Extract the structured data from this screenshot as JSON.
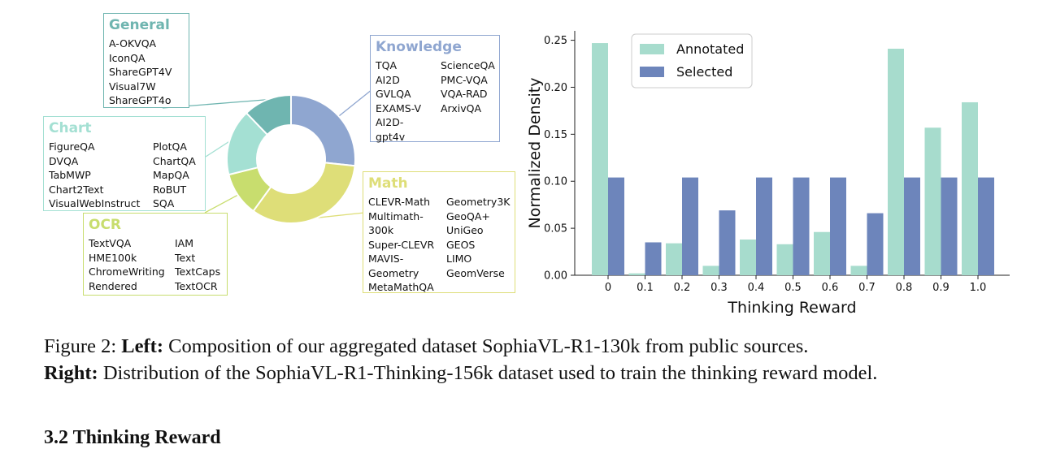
{
  "colors": {
    "general": "#6fb5b0",
    "knowledge": "#8fa6d0",
    "math": "#dede78",
    "ocr": "#c8dd6e",
    "chart": "#a4e0d3",
    "annotated": "#a7dccd",
    "selected": "#6d85bb"
  },
  "donut": {
    "slices": [
      {
        "name": "Knowledge",
        "value": 24
      },
      {
        "name": "Math",
        "value": 30
      },
      {
        "name": "OCR",
        "value": 10
      },
      {
        "name": "Chart",
        "value": 15
      },
      {
        "name": "General",
        "value": 11
      }
    ]
  },
  "boxes": {
    "general": {
      "title": "General",
      "items": [
        "A-OKVQA",
        "IconQA",
        "ShareGPT4V",
        "Visual7W",
        "ShareGPT4o"
      ]
    },
    "knowledge": {
      "title": "Knowledge",
      "col1": [
        "TQA",
        "AI2D",
        "GVLQA",
        "EXAMS-V",
        "AI2D-\ngpt4v"
      ],
      "col2": [
        "ScienceQA",
        "PMC-VQA",
        "VQA-RAD",
        "ArxivQA"
      ]
    },
    "chart": {
      "title": "Chart",
      "col1": [
        "FigureQA",
        "DVQA",
        "TabMWP",
        "Chart2Text",
        "VisualWebInstruct"
      ],
      "col2": [
        "PlotQA",
        "ChartQA",
        "MapQA",
        "RoBUT",
        "SQA"
      ]
    },
    "math": {
      "title": "Math",
      "col1": [
        "CLEVR-Math",
        "Multimath-\n300k",
        "Super-CLEVR",
        "MAVIS-\nGeometry",
        "MetaMathQA"
      ],
      "col2": [
        "Geometry3K",
        "GeoQA+",
        "UniGeo",
        "GEOS",
        "LIMO",
        "GeomVerse"
      ]
    },
    "ocr": {
      "title": "OCR",
      "col1": [
        "TextVQA",
        "HME100k",
        "ChromeWriting",
        "Rendered"
      ],
      "col2": [
        "IAM",
        "Text",
        "TextCaps",
        "TextOCR"
      ]
    }
  },
  "chart_data": {
    "type": "bar",
    "xlabel": "Thinking Reward",
    "ylabel": "Normalized Density",
    "ylim": [
      0,
      0.26
    ],
    "yticks": [
      "0.00",
      "0.05",
      "0.10",
      "0.15",
      "0.20",
      "0.25"
    ],
    "categories": [
      "0",
      "0.1",
      "0.2",
      "0.3",
      "0.4",
      "0.5",
      "0.6",
      "0.7",
      "0.8",
      "0.9",
      "1.0"
    ],
    "series": [
      {
        "name": "Annotated",
        "values": [
          0.247,
          0.002,
          0.034,
          0.01,
          0.038,
          0.033,
          0.046,
          0.01,
          0.241,
          0.157,
          0.184
        ]
      },
      {
        "name": "Selected",
        "values": [
          0.104,
          0.035,
          0.104,
          0.069,
          0.104,
          0.104,
          0.104,
          0.066,
          0.104,
          0.104,
          0.104
        ]
      }
    ],
    "legend_position": "top-left"
  },
  "caption": {
    "figure_label": "Figure 2: ",
    "left_label": "Left:",
    "left_text": " Composition of our aggregated dataset SophiaVL-R1-130k from public sources.",
    "right_label": "Right:",
    "right_text": " Distribution of the SophiaVL-R1-Thinking-156k dataset used to train the thinking reward model."
  },
  "heading": "3.2   Thinking Reward"
}
